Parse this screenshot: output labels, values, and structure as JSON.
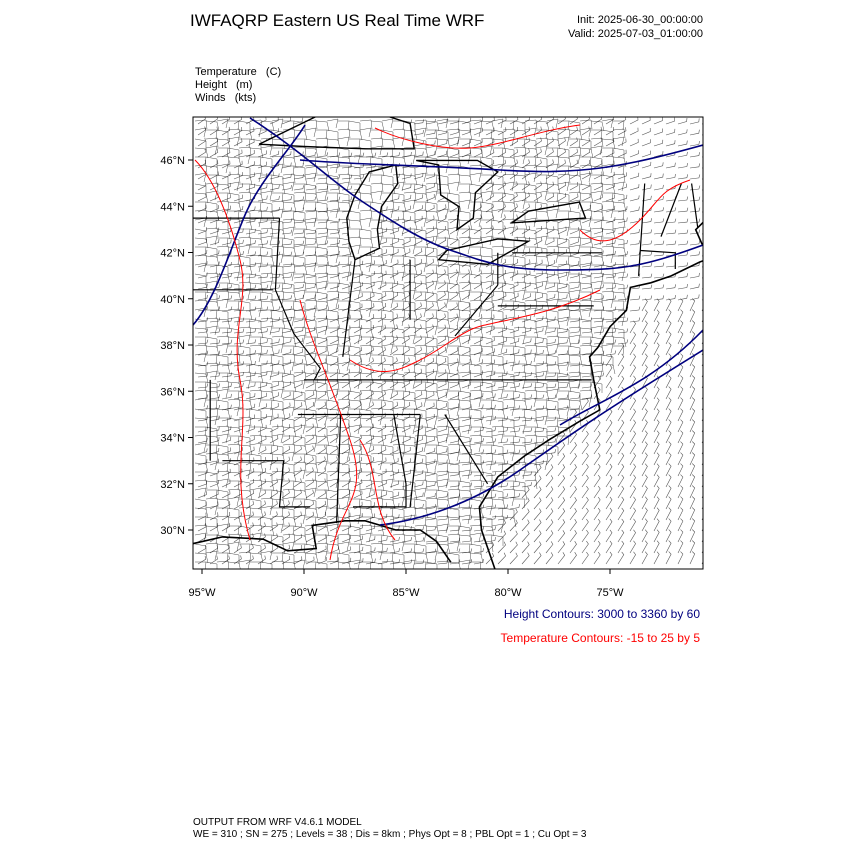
{
  "header": {
    "title": "IWFAQRP Eastern US Real Time WRF",
    "init": "Init: 2025-06-30_00:00:00",
    "valid": "Valid: 2025-07-03_01:00:00"
  },
  "fields": [
    "Temperature   (C)",
    "Height   (m)",
    "Winds   (kts)"
  ],
  "map": {
    "lat_labels": [
      "46°N",
      "44°N",
      "42°N",
      "40°N",
      "38°N",
      "36°N",
      "34°N",
      "32°N",
      "30°N"
    ],
    "lon_labels": [
      "95°W",
      "90°W",
      "85°W",
      "80°W",
      "75°W"
    ]
  },
  "legend": {
    "height_contours": "Height Contours: 3000 to 3360 by 60",
    "temperature_contours": "Temperature Contours: -15 to 25 by 5"
  },
  "footer": {
    "model": "OUTPUT FROM WRF V4.6.1 MODEL",
    "settings": "WE = 310 ; SN = 275 ; Levels = 38 ; Dis = 8km ; Phys Opt = 8 ; PBL Opt = 1 ; Cu Opt = 3"
  }
}
